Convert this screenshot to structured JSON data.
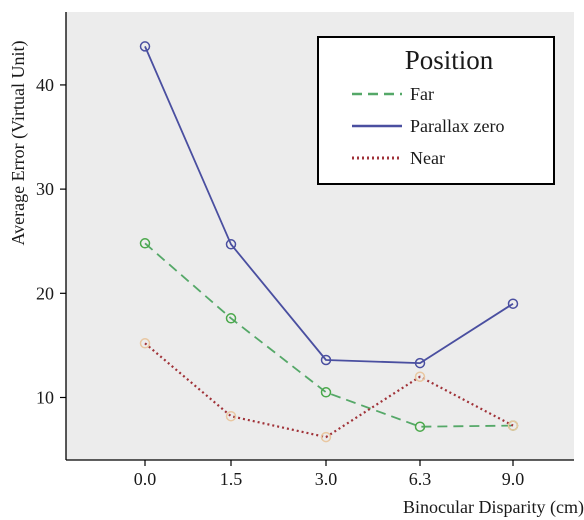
{
  "chart_data": {
    "type": "line",
    "title": "",
    "xlabel": "Binocular Disparity (cm)",
    "ylabel": "Average Error (Virtual Unit)",
    "categories": [
      "0.0",
      "1.5",
      "3.0",
      "6.3",
      "9.0"
    ],
    "yticks": [
      "10",
      "20",
      "30",
      "40"
    ],
    "ylim": [
      4,
      47
    ],
    "grid": false,
    "legend": {
      "title": "Position",
      "placement": "top-right"
    },
    "series": [
      {
        "name": "Far",
        "color": "#55a868",
        "style": "dashed",
        "values": [
          24.8,
          17.6,
          10.5,
          7.2,
          7.3
        ]
      },
      {
        "name": "Parallax zero",
        "color": "#4a4fa0",
        "style": "solid",
        "values": [
          43.7,
          24.7,
          13.6,
          13.3,
          19.0
        ]
      },
      {
        "name": "Near",
        "color": "#a03238",
        "style": "dotted",
        "values": [
          15.2,
          8.2,
          6.2,
          12.0,
          7.3
        ]
      }
    ],
    "marker_colors": {
      "Far": "#4aa84a",
      "Parallax zero": "#4a4fa0",
      "Near": "#e9c7a1"
    }
  }
}
